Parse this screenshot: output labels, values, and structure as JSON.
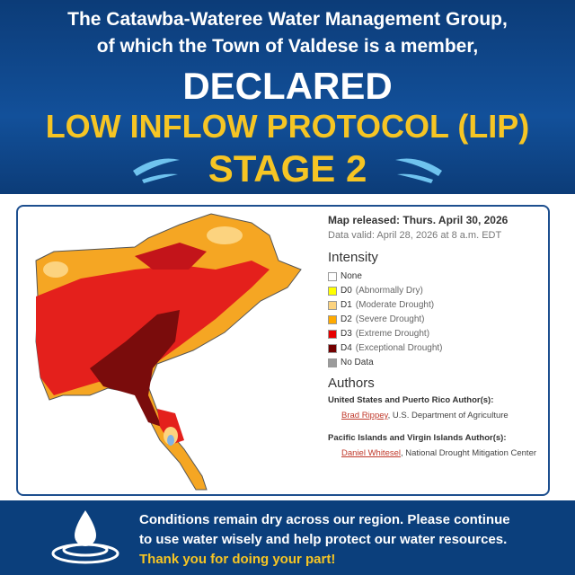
{
  "header": {
    "line1": "The Catawba-Wateree Water Management Group,",
    "line2": "of which the Town of Valdese is a member,",
    "declared": "DECLARED",
    "protocol": "LOW INFLOW PROTOCOL (LIP)",
    "stage": "STAGE 2"
  },
  "map_info": {
    "released": "Map released: Thurs. April 30, 2026",
    "valid": "Data valid: April 28, 2026 at 8 a.m. EDT",
    "intensity_title": "Intensity",
    "legend": [
      {
        "code": "None",
        "color": "#ffffff"
      },
      {
        "code": "D0",
        "description": "(Abnormally Dry)",
        "color": "#ffff00"
      },
      {
        "code": "D1",
        "description": "(Moderate Drought)",
        "color": "#fcd37f"
      },
      {
        "code": "D2",
        "description": "(Severe Drought)",
        "color": "#ffaa00"
      },
      {
        "code": "D3",
        "description": "(Extreme Drought)",
        "color": "#e60000"
      },
      {
        "code": "D4",
        "description": "(Exceptional Drought)",
        "color": "#730000"
      },
      {
        "code": "No Data",
        "color": "#9b9b9b"
      }
    ],
    "authors_title": "Authors",
    "authors": [
      {
        "heading": "United States and Puerto Rico Author(s):",
        "name": "Brad Rippey",
        "affiliation": ", U.S. Department of Agriculture"
      },
      {
        "heading": "Pacific Islands and Virgin Islands Author(s):",
        "name": "Daniel Whitesel",
        "affiliation": ", National Drought Mitigation Center"
      }
    ]
  },
  "footer": {
    "lines": [
      "Conditions remain dry across our region. Please continue",
      "to use water wisely and help protect our water resources."
    ],
    "thanks": "Thank you for doing your part!"
  }
}
